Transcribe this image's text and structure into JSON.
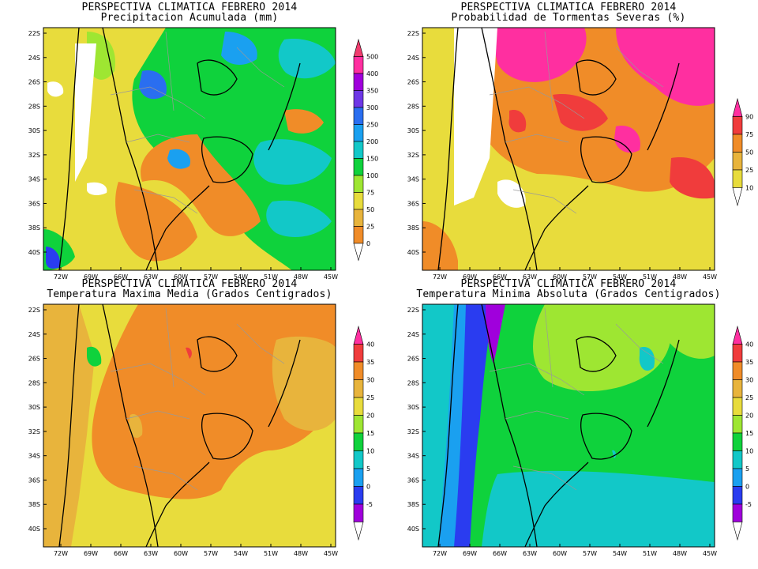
{
  "panels": [
    {
      "id": "precip",
      "title_line1": "PERSPECTIVA CLIMATICA FEBRERO 2014",
      "title_line2": "Precipitacion Acumulada (mm)",
      "colorbar_labels": [
        "500",
        "400",
        "350",
        "300",
        "250",
        "200",
        "150",
        "100",
        "75",
        "50",
        "25",
        "0"
      ],
      "colorbar_colors": [
        "#f03c6e",
        "#ff2fa0",
        "#a000dc",
        "#6e37e6",
        "#2a6ef0",
        "#1aa0f0",
        "#12c8c8",
        "#0fd23c",
        "#9ee632",
        "#e8dc3c",
        "#e8b43c",
        "#f08c28"
      ]
    },
    {
      "id": "storms",
      "title_line1": "PERSPECTIVA CLIMATICA FEBRERO 2014",
      "title_line2": "Probabilidad de Tormentas Severas (%)",
      "colorbar_labels": [
        "90",
        "75",
        "50",
        "25",
        "10"
      ],
      "colorbar_colors": [
        "#ff2fa0",
        "#f03c3c",
        "#f08c28",
        "#e8b43c",
        "#e8dc3c"
      ]
    },
    {
      "id": "tmax",
      "title_line1": "PERSPECTIVA CLIMATICA FEBRERO 2014",
      "title_line2": "Temperatura Maxima Media (Grados Centigrados)",
      "colorbar_labels": [
        "40",
        "35",
        "30",
        "25",
        "20",
        "15",
        "10",
        "5",
        "0",
        "-5"
      ],
      "colorbar_colors": [
        "#ff2fa0",
        "#f03c3c",
        "#f08c28",
        "#e8b43c",
        "#e8dc3c",
        "#9ee632",
        "#0fd23c",
        "#12c8c8",
        "#1aa0f0",
        "#2a3cf0",
        "#a000dc"
      ]
    },
    {
      "id": "tmin",
      "title_line1": "PERSPECTIVA CLIMATICA FEBRERO 2014",
      "title_line2": "Temperatura Minima Absoluta (Grados Centigrados)",
      "colorbar_labels": [
        "40",
        "35",
        "30",
        "25",
        "20",
        "15",
        "10",
        "5",
        "0",
        "-5"
      ],
      "colorbar_colors": [
        "#ff2fa0",
        "#f03c3c",
        "#f08c28",
        "#e8b43c",
        "#e8dc3c",
        "#9ee632",
        "#0fd23c",
        "#12c8c8",
        "#1aa0f0",
        "#2a3cf0",
        "#a000dc"
      ]
    }
  ],
  "lat_labels": [
    "22S",
    "24S",
    "26S",
    "28S",
    "30S",
    "32S",
    "34S",
    "36S",
    "38S",
    "40S"
  ],
  "lon_labels": [
    "72W",
    "69W",
    "66W",
    "63W",
    "60W",
    "57W",
    "54W",
    "51W",
    "48W",
    "45W"
  ]
}
